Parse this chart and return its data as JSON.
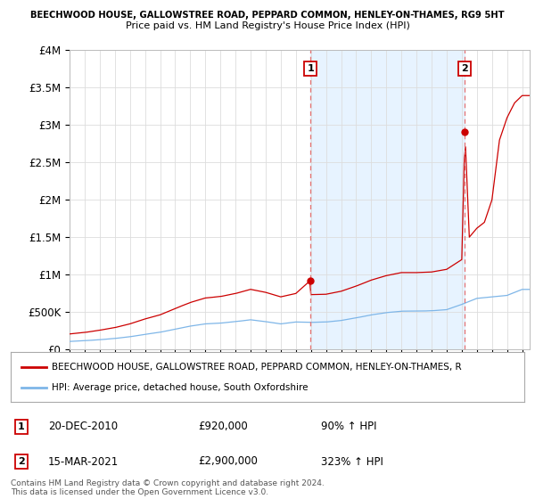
{
  "title_line1": "BEECHWOOD HOUSE, GALLOWSTREE ROAD, PEPPARD COMMON, HENLEY-ON-THAMES, RG9 5HT",
  "title_line2": "Price paid vs. HM Land Registry's House Price Index (HPI)",
  "ylim": [
    0,
    4000000
  ],
  "yticks": [
    0,
    500000,
    1000000,
    1500000,
    2000000,
    2500000,
    3000000,
    3500000,
    4000000
  ],
  "ytick_labels": [
    "£0",
    "£500K",
    "£1M",
    "£1.5M",
    "£2M",
    "£2.5M",
    "£3M",
    "£3.5M",
    "£4M"
  ],
  "xlim_start": 1995.0,
  "xlim_end": 2025.5,
  "purchase1_x": 2010.97,
  "purchase1_y": 920000,
  "purchase1_label": "1",
  "purchase1_date": "20-DEC-2010",
  "purchase1_price": "£920,000",
  "purchase1_hpi": "90% ↑ HPI",
  "purchase2_x": 2021.21,
  "purchase2_y": 2900000,
  "purchase2_label": "2",
  "purchase2_date": "15-MAR-2021",
  "purchase2_price": "£2,900,000",
  "purchase2_hpi": "323% ↑ HPI",
  "line_color_property": "#cc0000",
  "line_color_hpi": "#7eb6e8",
  "vline_color": "#e57373",
  "marker_color": "#cc0000",
  "grid_color": "#dddddd",
  "shade_color": "#ddeeff",
  "background_color": "#ffffff",
  "legend_label_property": "BEECHWOOD HOUSE, GALLOWSTREE ROAD, PEPPARD COMMON, HENLEY-ON-THAMES, R",
  "legend_label_hpi": "HPI: Average price, detached house, South Oxfordshire",
  "footnote": "Contains HM Land Registry data © Crown copyright and database right 2024.\nThis data is licensed under the Open Government Licence v3.0."
}
